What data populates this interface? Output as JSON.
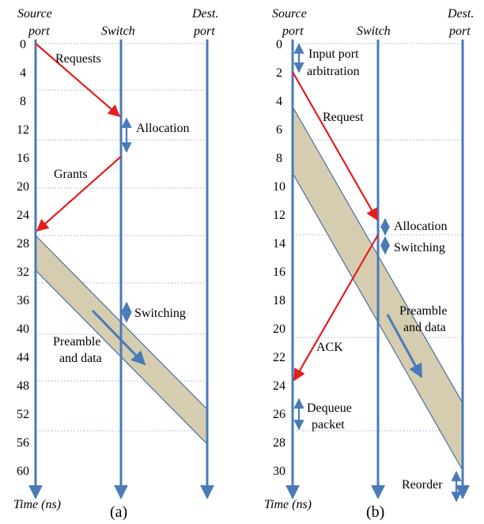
{
  "colors": {
    "line": "#4a7ab8",
    "request": "#e81c1c",
    "band_fill": "#d6cdb1",
    "band_stroke": "#4a6f9a",
    "grid": "#8fb0d8"
  },
  "panel_a": {
    "headers": {
      "source": [
        "Source",
        "port"
      ],
      "switch": "Switch",
      "dest": [
        "Dest.",
        "port"
      ]
    },
    "ticks": [
      "0",
      "4",
      "8",
      "12",
      "16",
      "20",
      "24",
      "28",
      "32",
      "36",
      "40",
      "44",
      "48",
      "52",
      "56",
      "60"
    ],
    "labels": {
      "requests": "Requests",
      "allocation": "Allocation",
      "grants": "Grants",
      "switching": "Switching",
      "preamble": [
        "Preamble",
        "and data"
      ]
    },
    "time_label": "Time (ns)",
    "caption": "(a)"
  },
  "panel_b": {
    "headers": {
      "source": [
        "Source",
        "port"
      ],
      "switch": "Switch",
      "dest": [
        "Dest.",
        "port"
      ]
    },
    "ticks": [
      "0",
      "2",
      "4",
      "6",
      "8",
      "10",
      "12",
      "14",
      "16",
      "18",
      "20",
      "22",
      "24",
      "26",
      "28",
      "30"
    ],
    "labels": {
      "input_arb": [
        "Input port",
        "arbitration"
      ],
      "request": "Request",
      "allocation": "Allocation",
      "switching": "Switching",
      "preamble": [
        "Preamble",
        "and data"
      ],
      "ack": "ACK",
      "dequeue": [
        "Dequeue",
        "packet"
      ],
      "reorder": "Reorder"
    },
    "time_label": "Time (ns)",
    "caption": "(b)"
  }
}
